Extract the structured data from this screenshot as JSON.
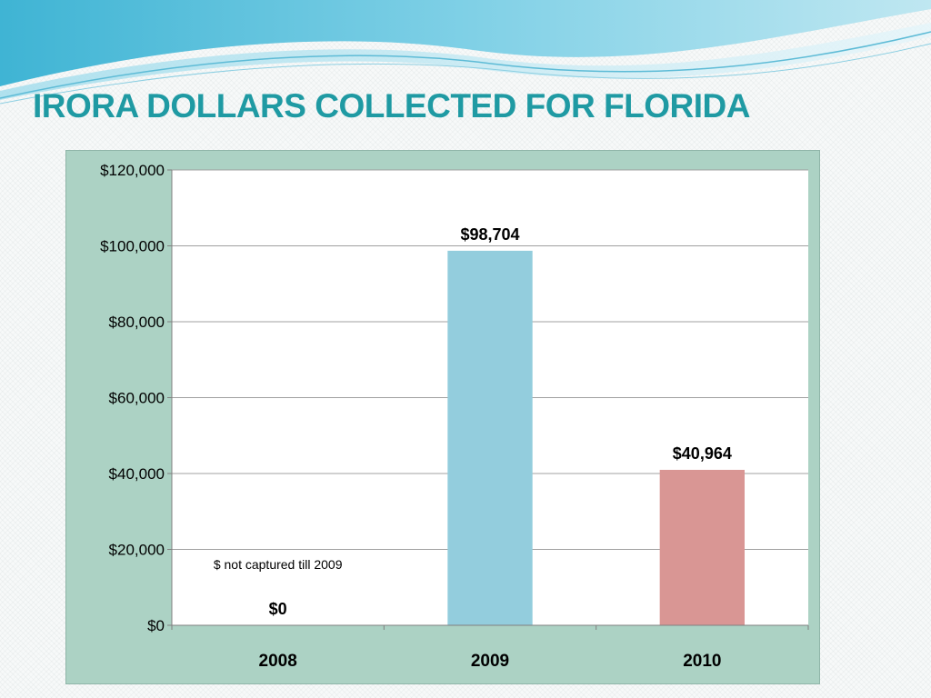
{
  "slide": {
    "title": "IRORA DOLLARS COLLECTED FOR FLORIDA"
  },
  "colors": {
    "title": "#1f9aa3",
    "chart_background": "#acd2c4",
    "plot_background": "#ffffff",
    "gridline": "#a0a0a0"
  },
  "chart_data": {
    "type": "bar",
    "title": "",
    "xlabel": "",
    "ylabel": "",
    "categories": [
      "2008",
      "2009",
      "2010"
    ],
    "values": [
      0,
      98704,
      40964
    ],
    "value_labels": [
      "$0",
      "$98,704",
      "$40,964"
    ],
    "bar_colors": [
      "#93cddd",
      "#93cddd",
      "#d99694"
    ],
    "ylim": [
      0,
      120000
    ],
    "yticks": [
      0,
      20000,
      40000,
      60000,
      80000,
      100000,
      120000
    ],
    "ytick_labels": [
      "$0",
      "$20,000",
      "$40,000",
      "$60,000",
      "$80,000",
      "$100,000",
      "$120,000"
    ],
    "grid": true,
    "legend": "none",
    "annotations": [
      {
        "category": "2008",
        "text": "$ not captured till 2009",
        "value": 16000
      }
    ]
  }
}
